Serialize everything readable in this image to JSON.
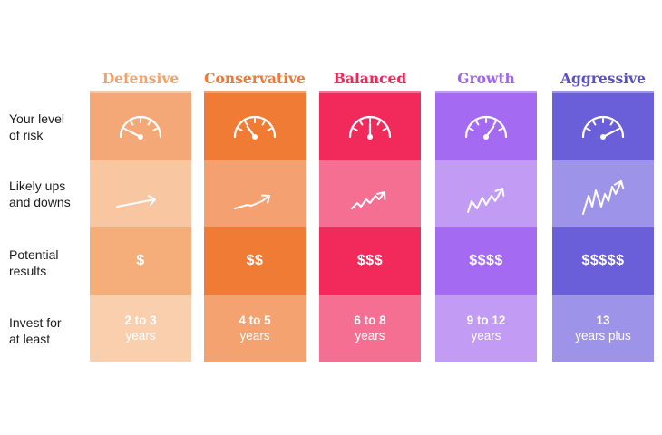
{
  "row_labels": [
    {
      "line1": "Your level",
      "line2": "of risk"
    },
    {
      "line1": "Likely ups",
      "line2": "and downs"
    },
    {
      "line1": "Potential",
      "line2": "results"
    },
    {
      "line1": "Invest for",
      "line2": "at least"
    }
  ],
  "profiles": [
    {
      "name": "Defensive",
      "results": "$",
      "years_num": "2 to 3",
      "years_unit": "years",
      "gauge_level": 0.15,
      "trend_level": 1,
      "colors": {
        "title": "#f2a26b",
        "c1": "#f5a877",
        "c2": "#f9c6a2",
        "c3": "#f5ae7a",
        "c4": "#f9cfae"
      }
    },
    {
      "name": "Conservative",
      "results": "$$",
      "years_num": "4 to 5",
      "years_unit": "years",
      "gauge_level": 0.3,
      "trend_level": 2,
      "colors": {
        "title": "#ee7a36",
        "c1": "#f07b35",
        "c2": "#f4a070",
        "c3": "#f07b35",
        "c4": "#f4a270"
      }
    },
    {
      "name": "Balanced",
      "results": "$$$",
      "years_num": "6 to 8",
      "years_unit": "years",
      "gauge_level": 0.5,
      "trend_level": 3,
      "colors": {
        "title": "#f0285a",
        "c1": "#f22a5c",
        "c2": "#f56f93",
        "c3": "#f22a5c",
        "c4": "#f56f93"
      }
    },
    {
      "name": "Growth",
      "results": "$$$$",
      "years_num": "9 to 12",
      "years_unit": "years",
      "gauge_level": 0.7,
      "trend_level": 4,
      "colors": {
        "title": "#a066ee",
        "c1": "#a56af2",
        "c2": "#c29bf4",
        "c3": "#a56af2",
        "c4": "#c29bf4"
      }
    },
    {
      "name": "Aggressive",
      "results": "$$$$$",
      "years_num": "13",
      "years_unit": "years plus",
      "gauge_level": 0.85,
      "trend_level": 5,
      "colors": {
        "title": "#5a4fc8",
        "c1": "#6a5fd8",
        "c2": "#9d93e8",
        "c3": "#6a5fd8",
        "c4": "#9d93e8"
      }
    }
  ]
}
